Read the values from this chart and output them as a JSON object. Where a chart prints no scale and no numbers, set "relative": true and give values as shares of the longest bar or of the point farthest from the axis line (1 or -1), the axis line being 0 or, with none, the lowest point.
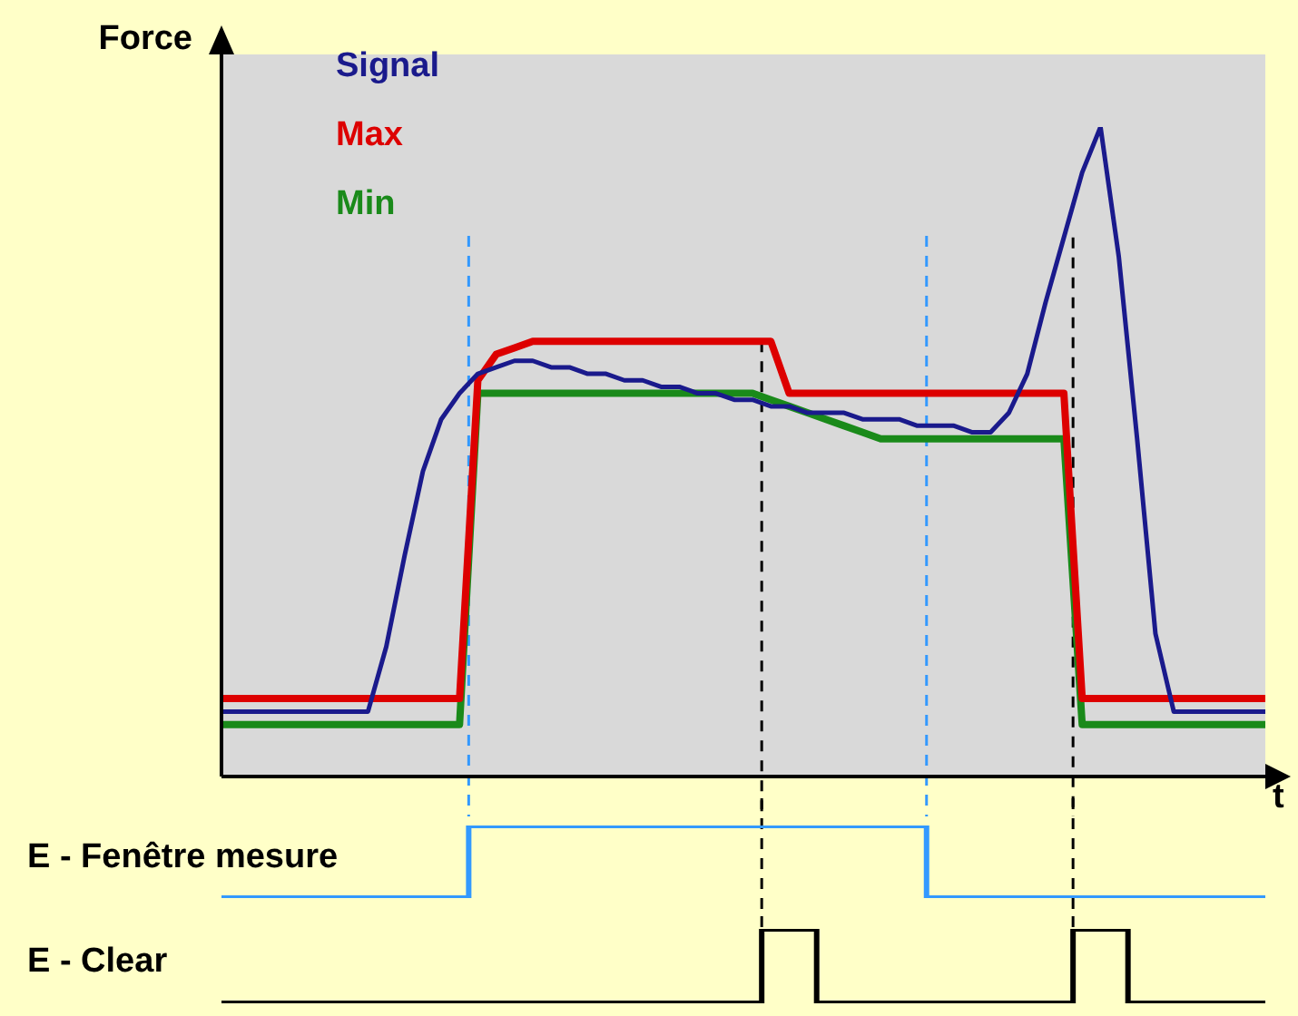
{
  "chart_data": [
    {
      "type": "line",
      "ylabel": "Force",
      "xlabel": "t",
      "relative": true,
      "legend": "top left",
      "tick_labels": false,
      "categories": [
        null,
        null,
        null,
        null,
        null,
        null,
        null,
        null,
        null,
        null,
        null,
        null,
        null,
        null,
        null,
        null,
        null,
        null,
        null,
        null,
        null,
        null,
        null,
        null,
        null,
        null,
        null,
        null,
        null,
        null,
        null,
        null,
        null,
        null,
        null,
        null,
        null,
        null,
        null,
        null,
        null,
        null,
        null,
        null,
        null,
        null,
        null,
        null,
        null,
        null,
        null,
        null,
        null,
        null,
        null,
        null,
        null,
        null
      ],
      "series": [
        {
          "name": "Signal",
          "color": "#1a1a8c",
          "values": [
            0.1,
            0.1,
            0.1,
            0.1,
            0.1,
            0.1,
            0.1,
            0.1,
            0.1,
            0.2,
            0.34,
            0.47,
            0.55,
            0.59,
            0.62,
            0.63,
            0.64,
            0.64,
            0.63,
            0.63,
            0.62,
            0.62,
            0.61,
            0.61,
            0.6,
            0.6,
            0.59,
            0.59,
            0.58,
            0.58,
            0.57,
            0.57,
            0.56,
            0.56,
            0.56,
            0.55,
            0.55,
            0.55,
            0.54,
            0.54,
            0.54,
            0.53,
            0.53,
            0.56,
            0.62,
            0.73,
            0.83,
            0.93,
            1,
            0.8,
            0.52,
            0.22,
            0.1,
            0.1,
            0.1,
            0.1,
            0.1,
            0.1
          ]
        },
        {
          "name": "Max",
          "color": "#dd0000",
          "values": [
            0.12,
            0.12,
            0.12,
            0.12,
            0.12,
            0.12,
            0.12,
            0.12,
            0.12,
            0.12,
            0.12,
            0.12,
            0.12,
            0.12,
            0.61,
            0.65,
            0.66,
            0.67,
            0.67,
            0.67,
            0.67,
            0.67,
            0.67,
            0.67,
            0.67,
            0.67,
            0.67,
            0.67,
            0.67,
            0.67,
            0.67,
            0.59,
            0.59,
            0.59,
            0.59,
            0.59,
            0.59,
            0.59,
            0.59,
            0.59,
            0.59,
            0.59,
            0.59,
            0.59,
            0.59,
            0.59,
            0.59,
            0.12,
            0.12,
            0.12,
            0.12,
            0.12,
            0.12,
            0.12,
            0.12,
            0.12,
            0.12,
            0.12
          ]
        },
        {
          "name": "Min",
          "color": "#1a8a1a",
          "values": [
            0.08,
            0.08,
            0.08,
            0.08,
            0.08,
            0.08,
            0.08,
            0.08,
            0.08,
            0.08,
            0.08,
            0.08,
            0.08,
            0.08,
            0.59,
            0.59,
            0.59,
            0.59,
            0.59,
            0.59,
            0.59,
            0.59,
            0.59,
            0.59,
            0.59,
            0.59,
            0.59,
            0.59,
            0.59,
            0.59,
            0.58,
            0.57,
            0.56,
            0.55,
            0.54,
            0.53,
            0.52,
            0.52,
            0.52,
            0.52,
            0.52,
            0.52,
            0.52,
            0.52,
            0.52,
            0.52,
            0.52,
            0.08,
            0.08,
            0.08,
            0.08,
            0.08,
            0.08,
            0.08,
            0.08,
            0.08,
            0.08,
            0.08
          ]
        }
      ]
    },
    {
      "type": "step",
      "ylabel": "E - Fenêtre mesure",
      "relative": true,
      "tick_labels": false,
      "categories": [
        null,
        null,
        null,
        null,
        null,
        null,
        null,
        null,
        null,
        null,
        null,
        null,
        null,
        null,
        null,
        null,
        null,
        null,
        null,
        null,
        null,
        null,
        null,
        null,
        null,
        null,
        null,
        null,
        null,
        null,
        null,
        null,
        null,
        null,
        null,
        null,
        null,
        null,
        null,
        null,
        null,
        null,
        null,
        null,
        null,
        null,
        null,
        null,
        null,
        null,
        null,
        null,
        null,
        null,
        null,
        null,
        null,
        null
      ],
      "series": [
        {
          "color": "#3399ff",
          "values": [
            0,
            0,
            0,
            0,
            0,
            0,
            0,
            0,
            0,
            0,
            0,
            0,
            0,
            0,
            1,
            1,
            1,
            1,
            1,
            1,
            1,
            1,
            1,
            1,
            1,
            1,
            1,
            1,
            1,
            1,
            1,
            1,
            1,
            1,
            1,
            1,
            1,
            1,
            1,
            0,
            0,
            0,
            0,
            0,
            0,
            0,
            0,
            0,
            0,
            0,
            0,
            0,
            0,
            0,
            0,
            0,
            0,
            0
          ]
        }
      ]
    },
    {
      "type": "step",
      "ylabel": "E - Clear",
      "relative": true,
      "tick_labels": false,
      "categories": [
        null,
        null,
        null,
        null,
        null,
        null,
        null,
        null,
        null,
        null,
        null,
        null,
        null,
        null,
        null,
        null,
        null,
        null,
        null,
        null,
        null,
        null,
        null,
        null,
        null,
        null,
        null,
        null,
        null,
        null,
        null,
        null,
        null,
        null,
        null,
        null,
        null,
        null,
        null,
        null,
        null,
        null,
        null,
        null,
        null,
        null,
        null,
        null,
        null,
        null,
        null,
        null,
        null,
        null,
        null,
        null,
        null,
        null
      ],
      "series": [
        {
          "color": "#000000",
          "values": [
            0,
            0,
            0,
            0,
            0,
            0,
            0,
            0,
            0,
            0,
            0,
            0,
            0,
            0,
            0,
            0,
            0,
            0,
            0,
            0,
            0,
            0,
            0,
            0,
            0,
            0,
            0,
            0,
            0,
            0,
            1,
            1,
            1,
            0,
            0,
            0,
            0,
            0,
            0,
            0,
            0,
            0,
            0,
            0,
            0,
            0,
            0,
            1,
            1,
            1,
            0,
            0,
            0,
            0,
            0,
            0,
            0,
            0
          ]
        }
      ]
    }
  ]
}
